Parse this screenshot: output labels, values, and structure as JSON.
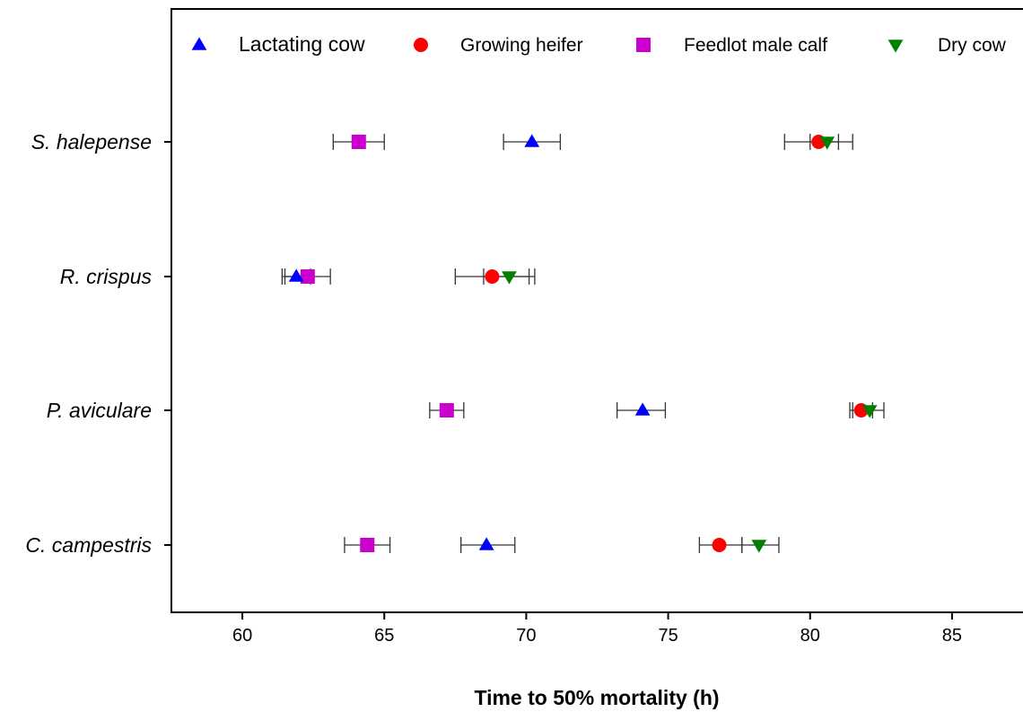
{
  "chart_data": {
    "type": "scatter",
    "title": "",
    "xlabel": "Time to 50% mortality (h)",
    "ylabel": "",
    "xlim": [
      57.5,
      87.5
    ],
    "xticks": [
      60,
      65,
      70,
      75,
      80,
      85
    ],
    "categories": [
      "S. halepense",
      "R. crispus",
      "P. aviculare",
      "C. campestris"
    ],
    "grid": false,
    "legend_position": "top",
    "series": [
      {
        "name": "Lactating cow",
        "color": "#0000ff",
        "marker": "triangle-up",
        "values": [
          70.2,
          61.9,
          74.1,
          68.6
        ],
        "err_low": [
          69.2,
          61.4,
          73.2,
          67.7
        ],
        "err_high": [
          71.2,
          62.4,
          74.9,
          69.6
        ]
      },
      {
        "name": "Growing heifer",
        "color": "#ff0000",
        "marker": "circle",
        "values": [
          80.3,
          68.8,
          81.8,
          76.8
        ],
        "err_low": [
          79.1,
          67.5,
          81.4,
          76.1
        ],
        "err_high": [
          81.0,
          70.1,
          82.2,
          77.6
        ]
      },
      {
        "name": "Feedlot male calf",
        "color": "#cc00cc",
        "marker": "square",
        "values": [
          64.1,
          62.3,
          67.2,
          64.4
        ],
        "err_low": [
          63.2,
          61.5,
          66.6,
          63.6
        ],
        "err_high": [
          65.0,
          63.1,
          67.8,
          65.2
        ]
      },
      {
        "name": "Dry cow",
        "color": "#008000",
        "marker": "triangle-down",
        "values": [
          80.6,
          69.4,
          82.1,
          78.2
        ],
        "err_low": [
          80.0,
          68.5,
          81.5,
          77.6
        ],
        "err_high": [
          81.5,
          70.3,
          82.6,
          78.9
        ]
      }
    ]
  }
}
